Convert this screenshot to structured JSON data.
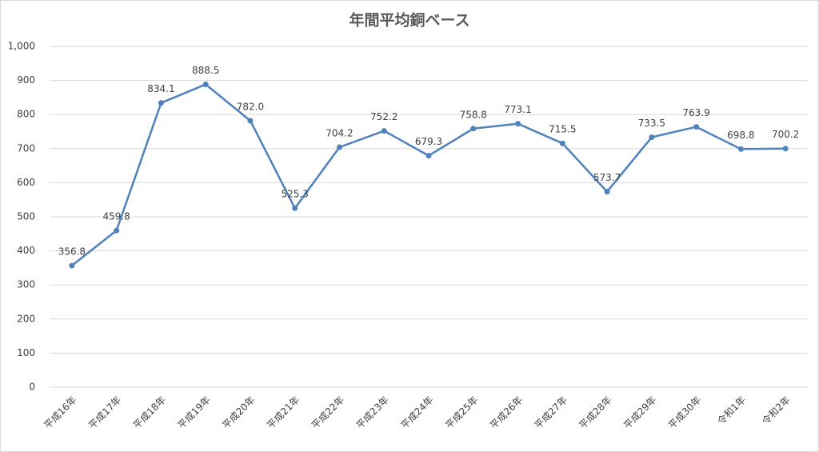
{
  "chart_data": {
    "type": "line",
    "title": "年間平均銅ベース",
    "categories": [
      "平成16年",
      "平成17年",
      "平成18年",
      "平成19年",
      "平成20年",
      "平成21年",
      "平成22年",
      "平成23年",
      "平成24年",
      "平成25年",
      "平成26年",
      "平成27年",
      "平成28年",
      "平成29年",
      "平成30年",
      "令和1年",
      "令和2年"
    ],
    "values": [
      356.8,
      459.8,
      834.1,
      888.5,
      782.0,
      525.3,
      704.2,
      752.2,
      679.3,
      758.8,
      773.1,
      715.5,
      573.7,
      733.5,
      763.9,
      698.8,
      700.2
    ],
    "value_labels": [
      "356.8",
      "459.8",
      "834.1",
      "888.5",
      "782.0",
      "525.3",
      "704.2",
      "752.2",
      "679.3",
      "758.8",
      "773.1",
      "715.5",
      "573.7",
      "733.5",
      "763.9",
      "698.8",
      "700.2"
    ],
    "color": "#4f81bd",
    "ylim": [
      0,
      1000
    ],
    "yticks": [
      0,
      100,
      200,
      300,
      400,
      500,
      600,
      700,
      800,
      900,
      {
        "value": 1000,
        "label": "1,000"
      }
    ],
    "grid": true
  }
}
